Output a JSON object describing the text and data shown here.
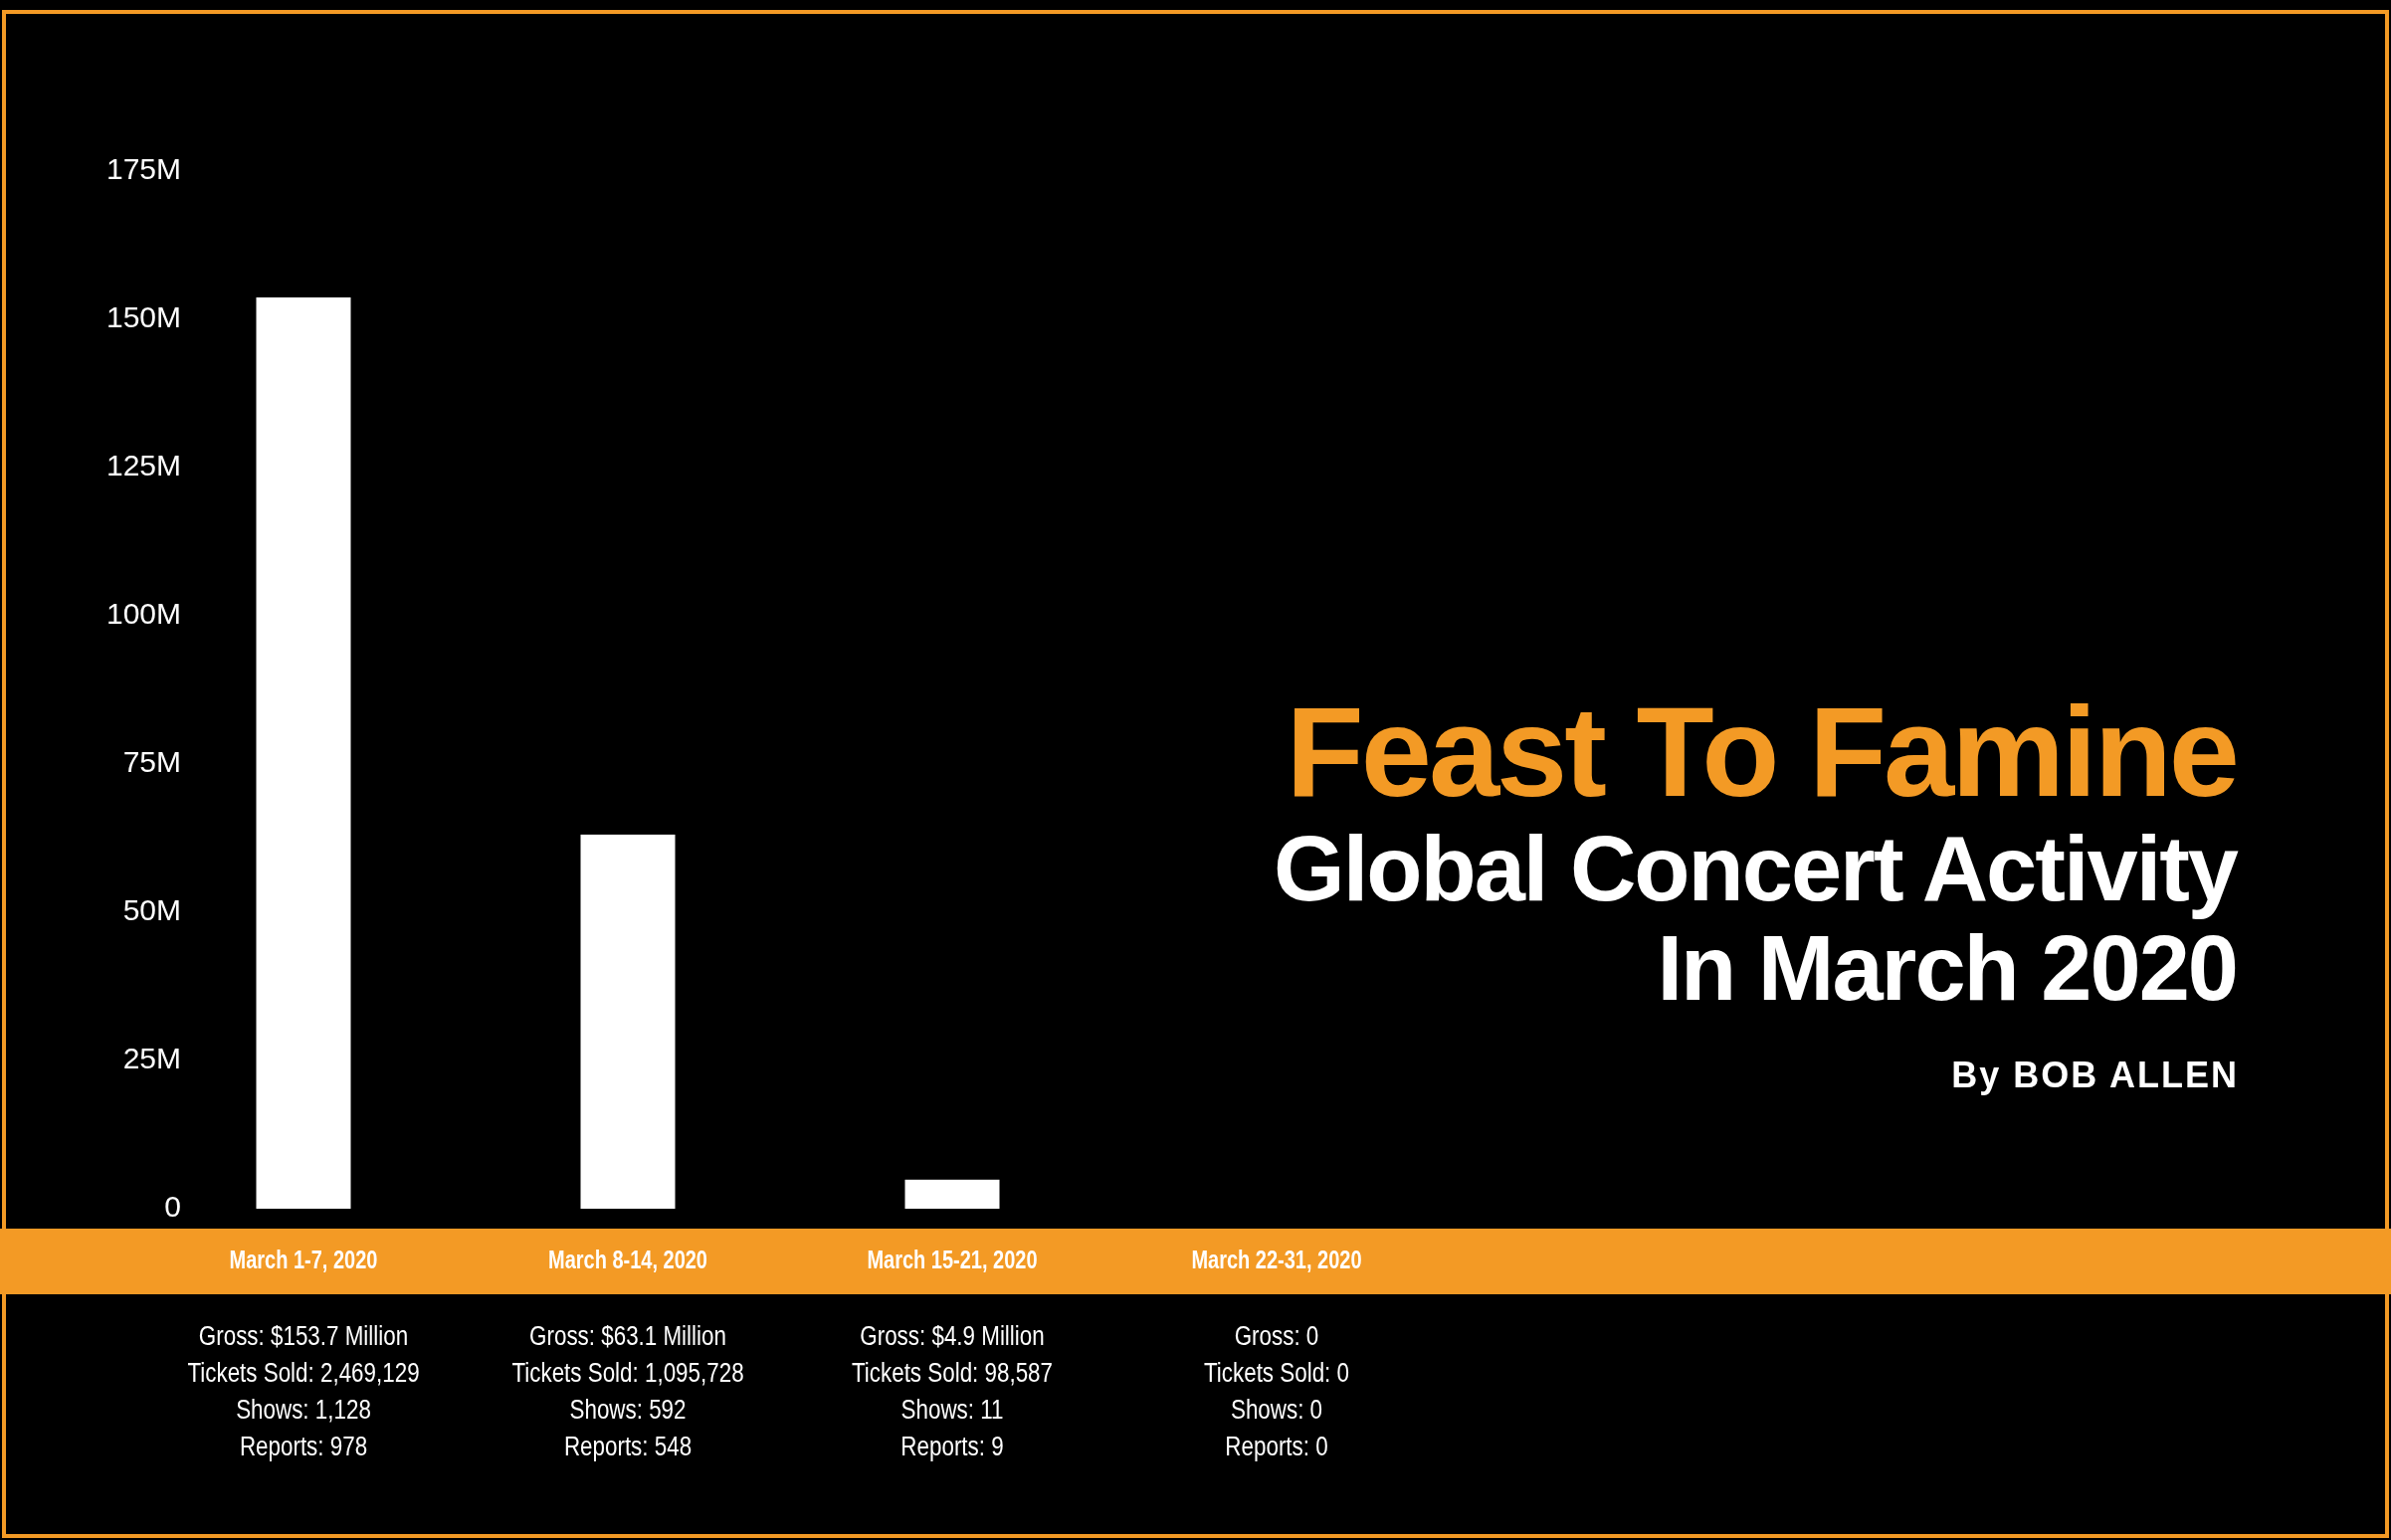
{
  "chart_data": {
    "type": "bar",
    "title": "Feast To Famine",
    "subtitle": "Global Concert Activity In March 2020",
    "categories": [
      "March 1-7, 2020",
      "March 8-14, 2020",
      "March 15-21, 2020",
      "March 22-31, 2020"
    ],
    "values": [
      153.7,
      63.1,
      4.9,
      0
    ],
    "color": "#ffffff",
    "value_labels": [
      "Gross: $153.7 Million",
      "Gross: $63.1 Million",
      "Gross: $4.9 Million",
      "Gross: 0"
    ],
    "ylim": [
      0,
      175
    ],
    "yticks": [
      0,
      {
        "value": 25,
        "label": "25M"
      },
      {
        "value": 50,
        "label": "50M"
      },
      {
        "value": 75,
        "label": "75M"
      },
      {
        "value": 100,
        "label": "100M"
      },
      {
        "value": 125,
        "label": "125M"
      },
      {
        "value": 150,
        "label": "150M"
      },
      {
        "value": 175,
        "label": "175M"
      }
    ],
    "annotations": [
      "By BOB ALLEN",
      "Tickets Sold: 2,469,129\nShows: 1,128\nReports: 978",
      "Tickets Sold: 1,095,728\nShows: 592\nReports: 548",
      "Tickets Sold: 98,587\nShows: 11\nReports: 9",
      "Tickets Sold: 0\nShows: 0\nReports: 0"
    ]
  }
}
